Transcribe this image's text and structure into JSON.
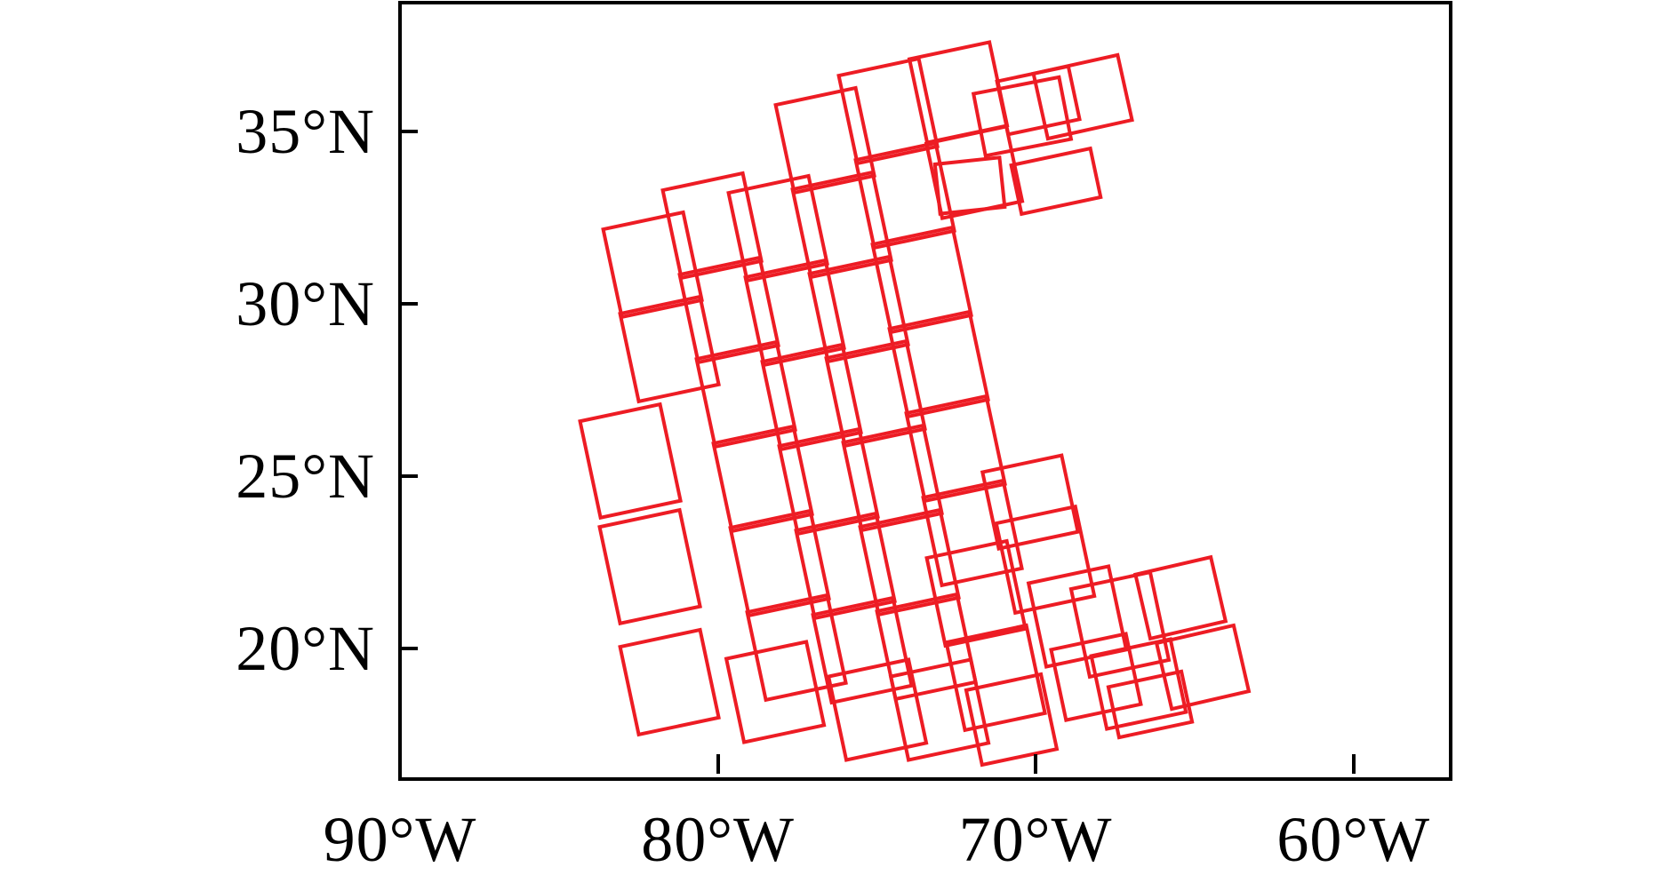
{
  "figure": {
    "description": "Map-style plot of overlapping survey footprint outlines over the western North Atlantic",
    "background_color": "#ffffff",
    "frame_color": "#000000",
    "footprint_color": "#ed1c24"
  },
  "chart_data": {
    "type": "scatter",
    "subtype": "rotated-rectangle footprints on lon/lat axes",
    "title": "",
    "xlabel": "",
    "ylabel": "",
    "grid": false,
    "legend": null,
    "x_axis": {
      "kind": "longitude",
      "range_deg_west": [
        90,
        57
      ],
      "ticks_deg_west": [
        90,
        80,
        70,
        60
      ],
      "tick_labels": [
        "90°W",
        "80°W",
        "70°W",
        "60°W"
      ]
    },
    "y_axis": {
      "kind": "latitude",
      "range_deg_north": [
        16.25,
        38.75
      ],
      "ticks_deg_north": [
        35,
        30,
        25,
        20
      ],
      "tick_labels": [
        "35°N",
        "30°N",
        "25°N",
        "20°N"
      ]
    },
    "footprint_style": {
      "stroke": "#ed1c24",
      "stroke_width_px": 4,
      "fill": "none"
    },
    "footprints": [
      {
        "lon_w": 82.06,
        "lat_n": 31.14,
        "w_deg": 2.68,
        "h_deg": 2.71,
        "rot_deg": -12
      },
      {
        "lon_w": 81.53,
        "lat_n": 28.69,
        "w_deg": 2.68,
        "h_deg": 2.71,
        "rot_deg": -12
      },
      {
        "lon_w": 82.76,
        "lat_n": 25.44,
        "w_deg": 2.68,
        "h_deg": 2.97,
        "rot_deg": -12
      },
      {
        "lon_w": 82.14,
        "lat_n": 22.37,
        "w_deg": 2.68,
        "h_deg": 2.97,
        "rot_deg": -12
      },
      {
        "lon_w": 81.53,
        "lat_n": 19.01,
        "w_deg": 2.68,
        "h_deg": 2.71,
        "rot_deg": -12
      },
      {
        "lon_w": 80.19,
        "lat_n": 32.27,
        "w_deg": 2.68,
        "h_deg": 2.71,
        "rot_deg": -12
      },
      {
        "lon_w": 79.65,
        "lat_n": 29.82,
        "w_deg": 2.68,
        "h_deg": 2.71,
        "rot_deg": -12
      },
      {
        "lon_w": 79.12,
        "lat_n": 27.37,
        "w_deg": 2.68,
        "h_deg": 2.71,
        "rot_deg": -12
      },
      {
        "lon_w": 78.59,
        "lat_n": 24.92,
        "w_deg": 2.68,
        "h_deg": 2.71,
        "rot_deg": -12
      },
      {
        "lon_w": 78.06,
        "lat_n": 22.47,
        "w_deg": 2.68,
        "h_deg": 2.71,
        "rot_deg": -12
      },
      {
        "lon_w": 77.53,
        "lat_n": 20.02,
        "w_deg": 2.68,
        "h_deg": 2.71,
        "rot_deg": -12
      },
      {
        "lon_w": 78.2,
        "lat_n": 18.73,
        "w_deg": 2.68,
        "h_deg": 2.58,
        "rot_deg": -12
      },
      {
        "lon_w": 78.12,
        "lat_n": 32.2,
        "w_deg": 2.68,
        "h_deg": 2.71,
        "rot_deg": -12
      },
      {
        "lon_w": 77.58,
        "lat_n": 29.75,
        "w_deg": 2.68,
        "h_deg": 2.71,
        "rot_deg": -12
      },
      {
        "lon_w": 77.05,
        "lat_n": 27.29,
        "w_deg": 2.68,
        "h_deg": 2.71,
        "rot_deg": -12
      },
      {
        "lon_w": 76.52,
        "lat_n": 24.84,
        "w_deg": 2.68,
        "h_deg": 2.71,
        "rot_deg": -12
      },
      {
        "lon_w": 75.99,
        "lat_n": 22.39,
        "w_deg": 2.68,
        "h_deg": 2.71,
        "rot_deg": -12
      },
      {
        "lon_w": 75.46,
        "lat_n": 19.94,
        "w_deg": 2.68,
        "h_deg": 2.71,
        "rot_deg": -12
      },
      {
        "lon_w": 74.98,
        "lat_n": 18.21,
        "w_deg": 2.68,
        "h_deg": 2.58,
        "rot_deg": -12
      },
      {
        "lon_w": 76.63,
        "lat_n": 34.75,
        "w_deg": 2.68,
        "h_deg": 2.71,
        "rot_deg": -12
      },
      {
        "lon_w": 76.1,
        "lat_n": 32.3,
        "w_deg": 2.68,
        "h_deg": 2.71,
        "rot_deg": -12
      },
      {
        "lon_w": 75.57,
        "lat_n": 29.85,
        "w_deg": 2.68,
        "h_deg": 2.71,
        "rot_deg": -12
      },
      {
        "lon_w": 75.04,
        "lat_n": 27.4,
        "w_deg": 2.68,
        "h_deg": 2.71,
        "rot_deg": -12
      },
      {
        "lon_w": 74.51,
        "lat_n": 24.95,
        "w_deg": 2.68,
        "h_deg": 2.71,
        "rot_deg": -12
      },
      {
        "lon_w": 73.98,
        "lat_n": 22.5,
        "w_deg": 2.68,
        "h_deg": 2.71,
        "rot_deg": -12
      },
      {
        "lon_w": 73.45,
        "lat_n": 20.04,
        "w_deg": 2.68,
        "h_deg": 2.71,
        "rot_deg": -12
      },
      {
        "lon_w": 73.03,
        "lat_n": 18.21,
        "w_deg": 2.68,
        "h_deg": 2.58,
        "rot_deg": -12
      },
      {
        "lon_w": 74.65,
        "lat_n": 35.6,
        "w_deg": 2.68,
        "h_deg": 2.71,
        "rot_deg": -12
      },
      {
        "lon_w": 74.12,
        "lat_n": 33.15,
        "w_deg": 2.68,
        "h_deg": 2.71,
        "rot_deg": -12
      },
      {
        "lon_w": 73.59,
        "lat_n": 30.7,
        "w_deg": 2.68,
        "h_deg": 2.71,
        "rot_deg": -12
      },
      {
        "lon_w": 73.05,
        "lat_n": 28.25,
        "w_deg": 2.68,
        "h_deg": 2.71,
        "rot_deg": -12
      },
      {
        "lon_w": 72.52,
        "lat_n": 25.8,
        "w_deg": 2.68,
        "h_deg": 2.71,
        "rot_deg": -12
      },
      {
        "lon_w": 71.99,
        "lat_n": 23.35,
        "w_deg": 2.68,
        "h_deg": 2.71,
        "rot_deg": -12
      },
      {
        "lon_w": 71.88,
        "lat_n": 21.59,
        "w_deg": 2.68,
        "h_deg": 2.71,
        "rot_deg": -12
      },
      {
        "lon_w": 71.26,
        "lat_n": 19.14,
        "w_deg": 2.68,
        "h_deg": 2.71,
        "rot_deg": -12
      },
      {
        "lon_w": 70.76,
        "lat_n": 17.93,
        "w_deg": 2.52,
        "h_deg": 2.32,
        "rot_deg": -12
      },
      {
        "lon_w": 72.44,
        "lat_n": 36.14,
        "w_deg": 2.68,
        "h_deg": 2.58,
        "rot_deg": -12
      },
      {
        "lon_w": 71.94,
        "lat_n": 33.82,
        "w_deg": 2.68,
        "h_deg": 2.32,
        "rot_deg": -12
      },
      {
        "lon_w": 70.43,
        "lat_n": 35.45,
        "w_deg": 2.85,
        "h_deg": 1.93,
        "rot_deg": -11
      },
      {
        "lon_w": 69.92,
        "lat_n": 35.91,
        "w_deg": 2.4,
        "h_deg": 1.68,
        "rot_deg": -12
      },
      {
        "lon_w": 68.52,
        "lat_n": 36.02,
        "w_deg": 2.82,
        "h_deg": 2.04,
        "rot_deg": -12.5
      },
      {
        "lon_w": 69.36,
        "lat_n": 33.56,
        "w_deg": 2.66,
        "h_deg": 1.55,
        "rot_deg": -12
      },
      {
        "lon_w": 72.07,
        "lat_n": 33.44,
        "w_deg": 2.15,
        "h_deg": 1.55,
        "rot_deg": -6
      },
      {
        "lon_w": 70.17,
        "lat_n": 24.25,
        "w_deg": 2.66,
        "h_deg": 2.37,
        "rot_deg": -12
      },
      {
        "lon_w": 69.7,
        "lat_n": 22.57,
        "w_deg": 2.66,
        "h_deg": 2.76,
        "rot_deg": -12
      },
      {
        "lon_w": 68.69,
        "lat_n": 20.92,
        "w_deg": 2.68,
        "h_deg": 2.58,
        "rot_deg": -12
      },
      {
        "lon_w": 67.35,
        "lat_n": 20.69,
        "w_deg": 2.66,
        "h_deg": 2.71,
        "rot_deg": -12
      },
      {
        "lon_w": 65.45,
        "lat_n": 21.46,
        "w_deg": 2.54,
        "h_deg": 2.01,
        "rot_deg": -13
      },
      {
        "lon_w": 68.1,
        "lat_n": 19.17,
        "w_deg": 2.52,
        "h_deg": 2.19,
        "rot_deg": -12
      },
      {
        "lon_w": 66.76,
        "lat_n": 18.96,
        "w_deg": 2.66,
        "h_deg": 2.27,
        "rot_deg": -12
      },
      {
        "lon_w": 64.75,
        "lat_n": 19.45,
        "w_deg": 2.6,
        "h_deg": 2.06,
        "rot_deg": -13
      },
      {
        "lon_w": 66.4,
        "lat_n": 18.37,
        "w_deg": 2.46,
        "h_deg": 1.6,
        "rot_deg": -12
      }
    ]
  }
}
